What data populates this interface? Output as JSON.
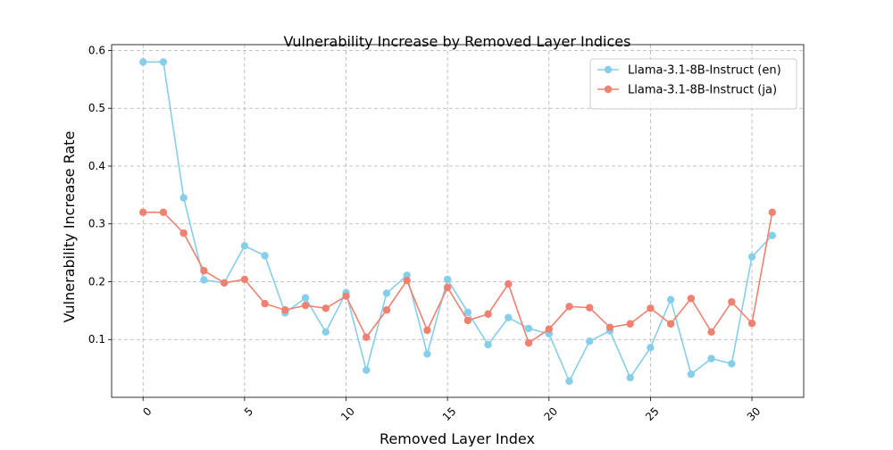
{
  "chart_data": {
    "type": "line",
    "title": "Vulnerability Increase by Removed Layer Indices",
    "xlabel": "Removed Layer Index",
    "ylabel": "Vulnerability Increase Rate",
    "xlim": [
      -1.55,
      32.55
    ],
    "ylim": [
      0.0,
      0.61
    ],
    "x": [
      0,
      1,
      2,
      3,
      4,
      5,
      6,
      7,
      8,
      9,
      10,
      11,
      12,
      13,
      14,
      15,
      16,
      17,
      18,
      19,
      20,
      21,
      22,
      23,
      24,
      25,
      26,
      27,
      28,
      29,
      30,
      31
    ],
    "xticks": [
      0,
      5,
      10,
      15,
      20,
      25,
      30
    ],
    "xtick_labels": [
      "0",
      "5",
      "10",
      "15",
      "20",
      "25",
      "30"
    ],
    "yticks": [
      0.1,
      0.2,
      0.3,
      0.4,
      0.5,
      0.6
    ],
    "ytick_labels": [
      "0.1",
      "0.2",
      "0.3",
      "0.4",
      "0.5",
      "0.6"
    ],
    "grid": true,
    "legend_position": "top-right",
    "series": [
      {
        "name": "Llama-3.1-8B-Instruct (en)",
        "color": "#87ceeb",
        "values": [
          0.58,
          0.58,
          0.345,
          0.203,
          0.198,
          0.262,
          0.245,
          0.146,
          0.172,
          0.113,
          0.181,
          0.047,
          0.18,
          0.211,
          0.075,
          0.204,
          0.147,
          0.091,
          0.138,
          0.119,
          0.11,
          0.028,
          0.097,
          0.115,
          0.034,
          0.086,
          0.169,
          0.04,
          0.067,
          0.058,
          0.243,
          0.28
        ]
      },
      {
        "name": "Llama-3.1-8B-Instruct (ja)",
        "color": "#f08070",
        "values": [
          0.32,
          0.32,
          0.284,
          0.219,
          0.198,
          0.204,
          0.162,
          0.151,
          0.159,
          0.154,
          0.175,
          0.104,
          0.151,
          0.202,
          0.116,
          0.19,
          0.133,
          0.144,
          0.196,
          0.094,
          0.118,
          0.157,
          0.155,
          0.121,
          0.127,
          0.154,
          0.127,
          0.171,
          0.113,
          0.165,
          0.128,
          0.32
        ]
      }
    ]
  }
}
